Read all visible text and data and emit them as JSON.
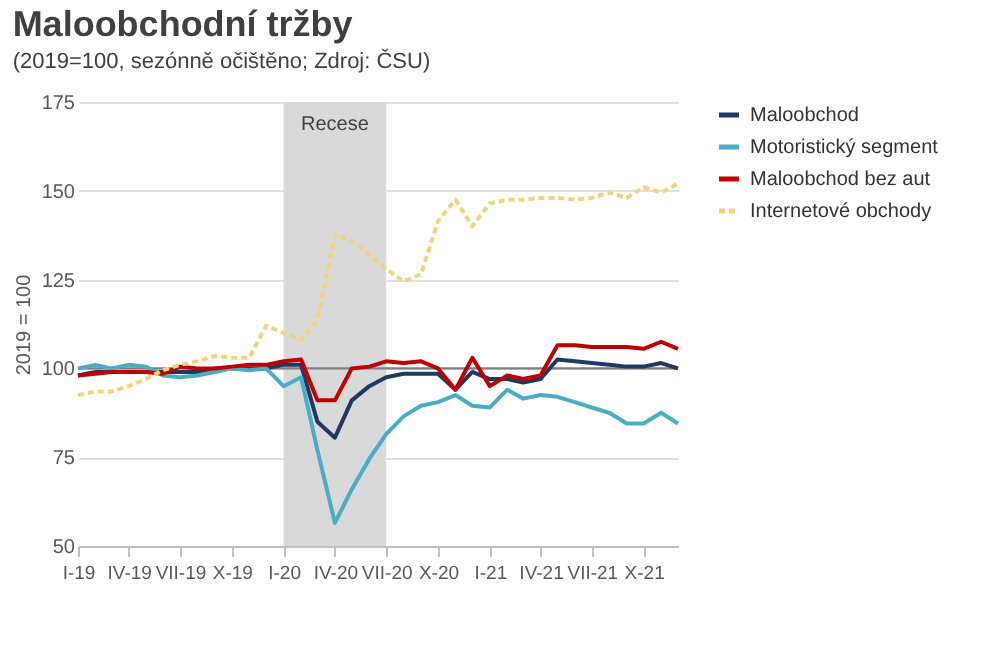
{
  "chart_data": {
    "type": "line",
    "title": "Maloobchodní tržby",
    "subtitle": "(2019=100, sezónně očištěno; Zdroj: ČSU)",
    "ylabel": "2019 = 100",
    "x": [
      "2019-01",
      "2019-02",
      "2019-03",
      "2019-04",
      "2019-05",
      "2019-06",
      "2019-07",
      "2019-08",
      "2019-09",
      "2019-10",
      "2019-11",
      "2019-12",
      "2020-01",
      "2020-02",
      "2020-03",
      "2020-04",
      "2020-05",
      "2020-06",
      "2020-07",
      "2020-08",
      "2020-09",
      "2020-10",
      "2020-11",
      "2020-12",
      "2021-01",
      "2021-02",
      "2021-03",
      "2021-04",
      "2021-05",
      "2021-06",
      "2021-07",
      "2021-08",
      "2021-09",
      "2021-10",
      "2021-11",
      "2021-12"
    ],
    "xlim": [
      "2019-01",
      "2021-12"
    ],
    "xticks": [
      {
        "value": "2019-01",
        "label": "I-19"
      },
      {
        "value": "2019-04",
        "label": "IV-19"
      },
      {
        "value": "2019-07",
        "label": "VII-19"
      },
      {
        "value": "2019-10",
        "label": "X-19"
      },
      {
        "value": "2020-01",
        "label": "I-20"
      },
      {
        "value": "2020-04",
        "label": "IV-20"
      },
      {
        "value": "2020-07",
        "label": "VII-20"
      },
      {
        "value": "2020-10",
        "label": "X-20"
      },
      {
        "value": "2021-01",
        "label": "I-21"
      },
      {
        "value": "2021-04",
        "label": "IV-21"
      },
      {
        "value": "2021-07",
        "label": "VII-21"
      },
      {
        "value": "2021-10",
        "label": "X-21"
      }
    ],
    "ylim": [
      50,
      175
    ],
    "yticks": [
      50,
      75,
      100,
      125,
      150,
      175
    ],
    "grid": "y",
    "legend": "right",
    "marker": "none",
    "bands": [
      {
        "axis": "x",
        "from": "2020-01",
        "to": "2020-07",
        "label": "Recese",
        "color": "#d9d9d9"
      }
    ],
    "ref_lines": [
      {
        "axis": "y",
        "value": 100,
        "color": "#7f7f7f"
      }
    ],
    "series": [
      {
        "name": "Maloobchod",
        "color": "#1f3864",
        "line_style": "solid",
        "values": [
          98,
          99,
          99,
          99,
          99,
          99,
          99,
          99,
          100,
          100,
          100,
          100,
          101,
          101,
          85,
          80.5,
          91,
          95,
          97.5,
          98.5,
          98.5,
          98.5,
          94,
          99,
          97,
          97,
          96,
          97,
          102.5,
          102,
          101.5,
          101,
          100.5,
          100.5,
          101.5,
          100
        ]
      },
      {
        "name": "Motoristický segment",
        "color": "#4bacc6",
        "line_style": "solid",
        "values": [
          100,
          101,
          100,
          101,
          100.5,
          98,
          97.5,
          98,
          99,
          100,
          99.5,
          100,
          95,
          97.5,
          77,
          56.5,
          66,
          74.5,
          81.5,
          86.5,
          89.5,
          90.5,
          92.5,
          89.5,
          89,
          94,
          91.5,
          92.5,
          92,
          90.5,
          89,
          87.5,
          84.5,
          84.5,
          87.5,
          84.5
        ]
      },
      {
        "name": "Maloobchod bez aut",
        "color": "#c00000",
        "line_style": "solid",
        "values": [
          98,
          98.5,
          99,
          99,
          99,
          98.5,
          100.5,
          100,
          100,
          100.5,
          101,
          101,
          102,
          102.5,
          91,
          91,
          100,
          100.5,
          102,
          101.5,
          102,
          100,
          94,
          103,
          95,
          98,
          97,
          98,
          106.5,
          106.5,
          106,
          106,
          106,
          105.5,
          107.5,
          105.5
        ]
      },
      {
        "name": "Internetové obchody",
        "color": "#f2d27a",
        "line_style": "dashed",
        "values": [
          92.5,
          93.5,
          93.5,
          95,
          97,
          99.5,
          101,
          102,
          103.5,
          103,
          103,
          112,
          110,
          108,
          113.5,
          137.5,
          136,
          132,
          128,
          124.5,
          126.5,
          141.5,
          147.5,
          140,
          146.5,
          147.5,
          147.5,
          148,
          148,
          147.5,
          148,
          149.5,
          148,
          151,
          149.5,
          152
        ]
      }
    ]
  }
}
